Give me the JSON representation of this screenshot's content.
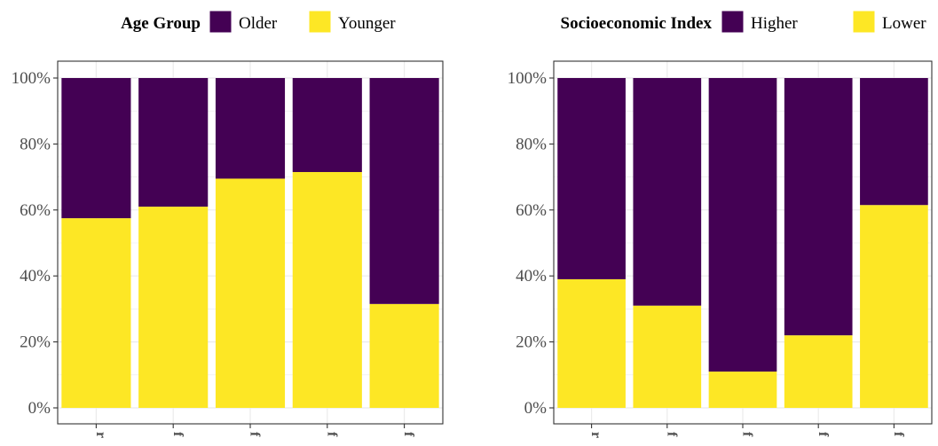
{
  "colors": {
    "older_higher": "#440154",
    "younger_lower": "#FDE725",
    "grid": "#ebebeb",
    "axis": "#333333"
  },
  "chart_data": [
    {
      "type": "bar",
      "stacked": true,
      "percent": true,
      "legend_title": "Age Group",
      "legend_placement": "top",
      "categories": [
        "r",
        "f",
        "f",
        "f",
        "f"
      ],
      "y_ticks": [
        "0%",
        "20%",
        "40%",
        "60%",
        "80%",
        "100%"
      ],
      "ylim": [
        0,
        100
      ],
      "series": [
        {
          "name": "Older",
          "color": "#440154",
          "values": [
            42.5,
            39,
            30.5,
            28.5,
            68.5
          ]
        },
        {
          "name": "Younger",
          "color": "#FDE725",
          "values": [
            57.5,
            61,
            69.5,
            71.5,
            31.5
          ]
        }
      ]
    },
    {
      "type": "bar",
      "stacked": true,
      "percent": true,
      "legend_title": "Socioeconomic Index",
      "legend_placement": "top",
      "categories": [
        "r",
        "f",
        "f",
        "f",
        "f"
      ],
      "y_ticks": [
        "0%",
        "20%",
        "40%",
        "60%",
        "80%",
        "100%"
      ],
      "ylim": [
        0,
        100
      ],
      "series": [
        {
          "name": "Higher",
          "color": "#440154",
          "values": [
            61,
            69,
            89,
            78,
            38.5
          ]
        },
        {
          "name": "Lower",
          "color": "#FDE725",
          "values": [
            39,
            31,
            11,
            22,
            61.5
          ]
        }
      ]
    }
  ]
}
